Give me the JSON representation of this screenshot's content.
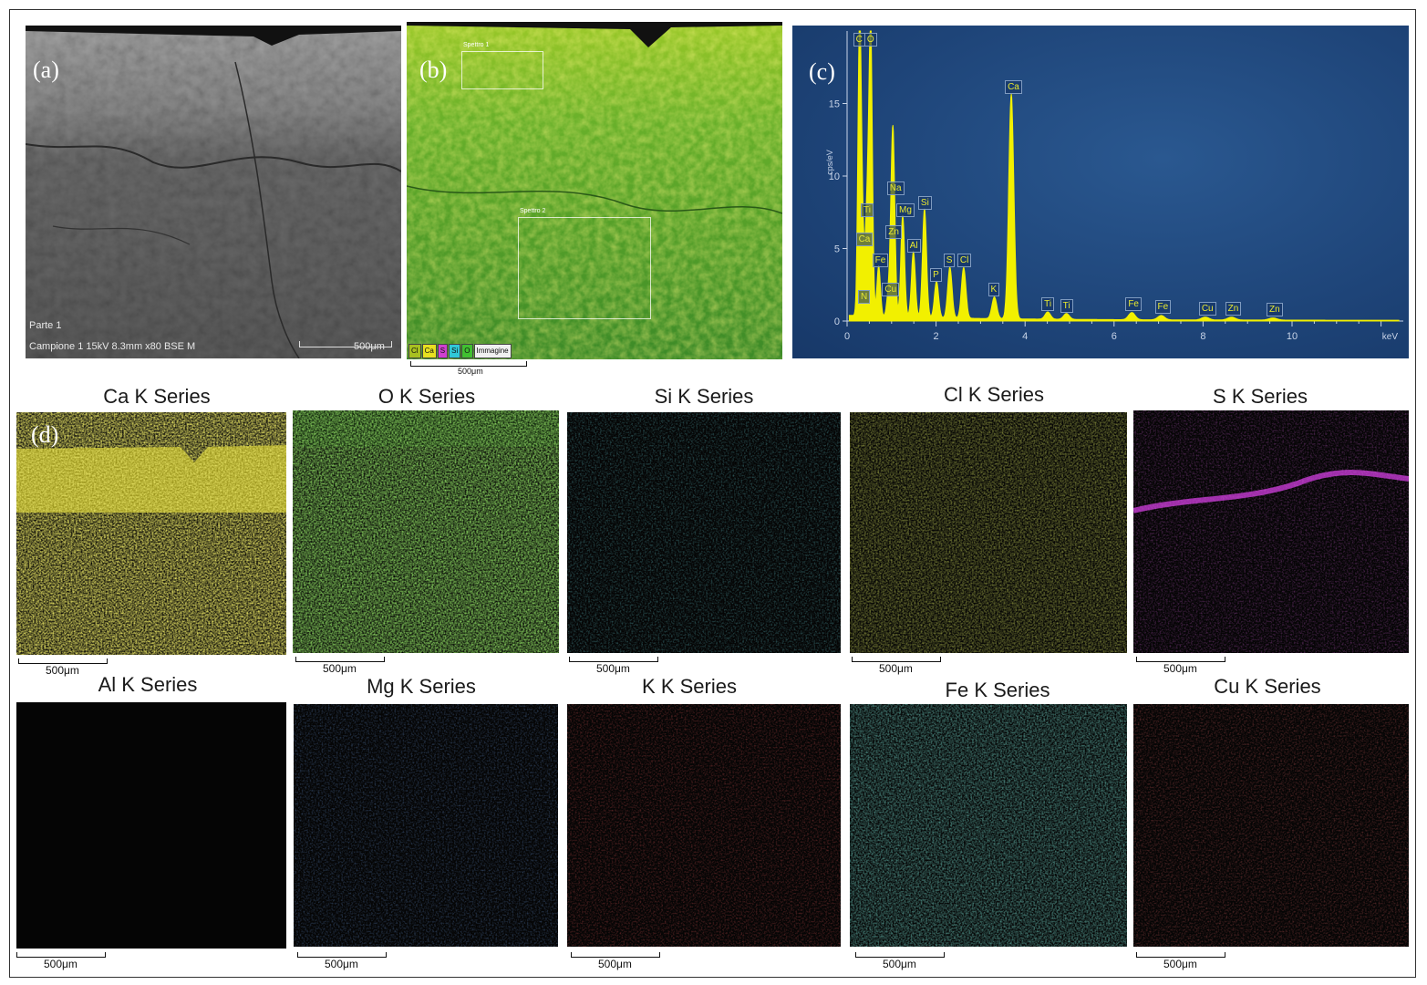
{
  "panels": {
    "a": {
      "letter": "(a)",
      "footer_line1": "Parte 1",
      "footer_line2": "Campione 1 15kV 8.3mm x80 BSE M",
      "scale": "500μm"
    },
    "b": {
      "letter": "(b)",
      "roi1": "Spettro 1",
      "roi2": "Spettro 2",
      "legend": [
        "Cl",
        "Ca",
        "S",
        "Si",
        "O",
        "Immagine"
      ],
      "scale": "500μm"
    },
    "c": {
      "letter": "(c)",
      "ylabel": "cps/eV",
      "xlabel": "keV"
    },
    "d": {
      "letter": "(d)"
    }
  },
  "maps": [
    {
      "title": "Ca K Series",
      "scale": "500μm",
      "color": "#c8c020"
    },
    {
      "title": "O K Series",
      "scale": "500μm",
      "color": "#3ea01c"
    },
    {
      "title": "Si K Series",
      "scale": "500μm",
      "color": "#28b8c8"
    },
    {
      "title": "Cl K Series",
      "scale": "500μm",
      "color": "#8a9a18"
    },
    {
      "title": "S K Series",
      "scale": "500μm",
      "color": "#b020c0"
    },
    {
      "title": "Al K Series",
      "scale": "500μm",
      "color": "#c86818"
    },
    {
      "title": "Mg K Series",
      "scale": "500μm",
      "color": "#2858c8"
    },
    {
      "title": "K K Series",
      "scale": "500μm",
      "color": "#c81818"
    },
    {
      "title": "Fe K Series",
      "scale": "500μm",
      "color": "#30b8a0"
    },
    {
      "title": "Cu K Series",
      "scale": "500μm",
      "color": "#c02020"
    }
  ],
  "chart_data": {
    "type": "line",
    "xlabel": "keV",
    "ylabel": "cps/eV",
    "xlim": [
      0,
      12.5
    ],
    "ylim": [
      0,
      20
    ],
    "xticks": [
      0,
      2,
      4,
      6,
      8,
      10
    ],
    "yticks": [
      0,
      5,
      10,
      15
    ],
    "peaks": [
      {
        "label": "C",
        "x": 0.28,
        "y": 20
      },
      {
        "label": "O",
        "x": 0.53,
        "y": 20
      },
      {
        "label": "N",
        "x": 0.39,
        "y": 1.0
      },
      {
        "label": "Ca",
        "x": 0.34,
        "y": 5.0
      },
      {
        "label": "Ti",
        "x": 0.45,
        "y": 7.0
      },
      {
        "label": "Fe",
        "x": 0.71,
        "y": 3.5
      },
      {
        "label": "Cu",
        "x": 0.93,
        "y": 1.5
      },
      {
        "label": "Zn",
        "x": 1.01,
        "y": 5.5
      },
      {
        "label": "Na",
        "x": 1.04,
        "y": 8.5
      },
      {
        "label": "Mg",
        "x": 1.25,
        "y": 7.0
      },
      {
        "label": "Al",
        "x": 1.49,
        "y": 4.5
      },
      {
        "label": "Si",
        "x": 1.74,
        "y": 7.5
      },
      {
        "label": "P",
        "x": 2.01,
        "y": 2.5
      },
      {
        "label": "S",
        "x": 2.31,
        "y": 3.5
      },
      {
        "label": "Cl",
        "x": 2.62,
        "y": 3.5
      },
      {
        "label": "K",
        "x": 3.31,
        "y": 1.5
      },
      {
        "label": "Ca",
        "x": 3.69,
        "y": 15.5
      },
      {
        "label": "Ti",
        "x": 4.51,
        "y": 0.5
      },
      {
        "label": "Ti",
        "x": 4.93,
        "y": 0.4
      },
      {
        "label": "Fe",
        "x": 6.4,
        "y": 0.5
      },
      {
        "label": "Fe",
        "x": 7.06,
        "y": 0.3
      },
      {
        "label": "Cu",
        "x": 8.05,
        "y": 0.2
      },
      {
        "label": "Zn",
        "x": 8.64,
        "y": 0.2
      },
      {
        "label": "Zn",
        "x": 9.57,
        "y": 0.15
      }
    ]
  }
}
